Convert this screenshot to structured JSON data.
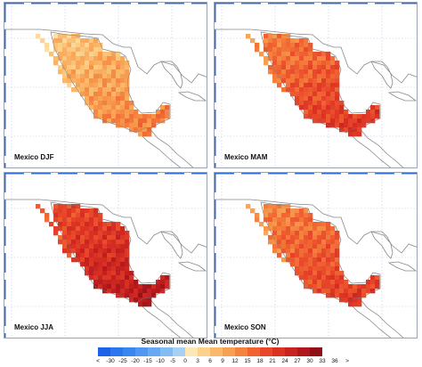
{
  "panels": [
    {
      "label": "Mexico DJF",
      "season": "DJF",
      "level": 0.35
    },
    {
      "label": "Mexico MAM",
      "season": "MAM",
      "level": 0.62
    },
    {
      "label": "Mexico JJA",
      "season": "JJA",
      "level": 0.8
    },
    {
      "label": "Mexico SON",
      "season": "SON",
      "level": 0.6
    }
  ],
  "colorbar": {
    "title": "Seasonal mean Mean temperature (°C)",
    "tick_labels": [
      "<",
      "-30",
      "-25",
      "-20",
      "-15",
      "-10",
      "-5",
      "0",
      "3",
      "6",
      "9",
      "12",
      "15",
      "18",
      "21",
      "24",
      "27",
      "30",
      "33",
      "36",
      ">"
    ],
    "colors": [
      "#1d63e8",
      "#2a76ef",
      "#3a86f0",
      "#4f97f2",
      "#67a9f3",
      "#82bcf4",
      "#a6d0f6",
      "#fde8b5",
      "#fcd18c",
      "#fbb86a",
      "#f8a052",
      "#f5833f",
      "#f06432",
      "#e8482a",
      "#dc3224",
      "#c82320",
      "#b0171c",
      "#900f17"
    ]
  },
  "map_colors": {
    "land_outline": "#888888",
    "country_border": "#b3b3b3",
    "graticule": "#bcc6e0",
    "frame_blue": "#2f6bd6"
  }
}
